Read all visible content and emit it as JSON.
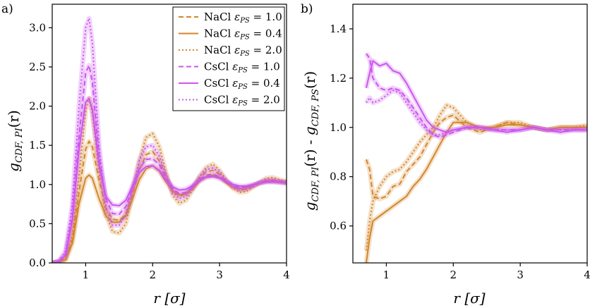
{
  "chart_data": [
    {
      "type": "line",
      "panel_label": "a)",
      "title": "",
      "xlabel": "r [σ]",
      "ylabel": "g_{CDF,PI}(r)",
      "xlim": [
        0.5,
        4.0
      ],
      "ylim": [
        0.0,
        3.3
      ],
      "xticks": [
        1,
        2,
        3,
        4
      ],
      "yticks": [
        0.0,
        0.5,
        1.0,
        1.5,
        2.0,
        2.5,
        3.0
      ],
      "legend_position": "top-right",
      "series": [
        {
          "name": "NaCl ε_PS = 1.0",
          "label_main": "NaCl ",
          "label_eps": "ε",
          "label_sub": "PS",
          "label_val": " = 1.0",
          "color": "#d4862a",
          "dash": "dashed",
          "x": [
            0.5,
            0.6,
            0.7,
            0.8,
            0.9,
            1.0,
            1.05,
            1.1,
            1.2,
            1.3,
            1.4,
            1.5,
            1.6,
            1.7,
            1.8,
            1.9,
            2.0,
            2.1,
            2.2,
            2.3,
            2.4,
            2.5,
            2.6,
            2.7,
            2.8,
            2.9,
            3.0,
            3.1,
            3.2,
            3.3,
            3.4,
            3.5,
            3.6,
            3.7,
            3.8,
            3.9,
            4.0
          ],
          "y": [
            0.0,
            0.01,
            0.05,
            0.3,
            0.9,
            1.45,
            1.55,
            1.48,
            1.05,
            0.7,
            0.56,
            0.54,
            0.62,
            0.88,
            1.18,
            1.38,
            1.42,
            1.3,
            1.1,
            0.92,
            0.85,
            0.88,
            0.97,
            1.08,
            1.16,
            1.18,
            1.13,
            1.04,
            0.97,
            0.93,
            0.94,
            0.98,
            1.02,
            1.05,
            1.06,
            1.04,
            1.03
          ]
        },
        {
          "name": "NaCl ε_PS = 0.4",
          "label_main": "NaCl ",
          "label_eps": "ε",
          "label_sub": "PS",
          "label_val": " = 0.4",
          "color": "#d4862a",
          "dash": "solid",
          "x": [
            0.5,
            0.6,
            0.7,
            0.8,
            0.9,
            1.0,
            1.05,
            1.1,
            1.2,
            1.3,
            1.4,
            1.5,
            1.6,
            1.7,
            1.8,
            1.9,
            2.0,
            2.1,
            2.2,
            2.3,
            2.4,
            2.5,
            2.6,
            2.7,
            2.8,
            2.9,
            3.0,
            3.1,
            3.2,
            3.3,
            3.4,
            3.5,
            3.6,
            3.7,
            3.8,
            3.9,
            4.0
          ],
          "y": [
            0.0,
            0.01,
            0.04,
            0.25,
            0.75,
            1.08,
            1.12,
            1.08,
            0.82,
            0.6,
            0.52,
            0.52,
            0.6,
            0.82,
            1.06,
            1.2,
            1.24,
            1.17,
            1.03,
            0.92,
            0.87,
            0.88,
            0.95,
            1.04,
            1.1,
            1.12,
            1.09,
            1.02,
            0.97,
            0.95,
            0.96,
            0.99,
            1.02,
            1.04,
            1.04,
            1.03,
            1.02
          ]
        },
        {
          "name": "NaCl ε_PS = 2.0",
          "label_main": "NaCl ",
          "label_eps": "ε",
          "label_sub": "PS",
          "label_val": " = 2.0",
          "color": "#d4862a",
          "dash": "dotted",
          "x": [
            0.5,
            0.6,
            0.7,
            0.8,
            0.9,
            1.0,
            1.05,
            1.1,
            1.2,
            1.3,
            1.4,
            1.5,
            1.6,
            1.7,
            1.8,
            1.9,
            2.0,
            2.1,
            2.2,
            2.3,
            2.4,
            2.5,
            2.6,
            2.7,
            2.8,
            2.9,
            3.0,
            3.1,
            3.2,
            3.3,
            3.4,
            3.5,
            3.6,
            3.7,
            3.8,
            3.9,
            4.0
          ],
          "y": [
            0.0,
            0.01,
            0.06,
            0.35,
            1.1,
            1.95,
            2.1,
            1.9,
            1.15,
            0.62,
            0.4,
            0.38,
            0.5,
            0.88,
            1.3,
            1.6,
            1.65,
            1.48,
            1.15,
            0.86,
            0.76,
            0.8,
            0.93,
            1.1,
            1.22,
            1.26,
            1.18,
            1.06,
            0.95,
            0.9,
            0.91,
            0.97,
            1.03,
            1.08,
            1.09,
            1.06,
            1.04
          ]
        },
        {
          "name": "CsCl ε_PS = 1.0",
          "label_main": "CsCl ",
          "label_eps": "ε",
          "label_sub": "PS",
          "label_val": " = 1.0",
          "color": "#cc55ee",
          "dash": "dashed",
          "x": [
            0.5,
            0.6,
            0.7,
            0.8,
            0.9,
            1.0,
            1.05,
            1.1,
            1.2,
            1.3,
            1.4,
            1.5,
            1.6,
            1.7,
            1.8,
            1.9,
            2.0,
            2.1,
            2.2,
            2.3,
            2.4,
            2.5,
            2.6,
            2.7,
            2.8,
            2.9,
            3.0,
            3.1,
            3.2,
            3.3,
            3.4,
            3.5,
            3.6,
            3.7,
            3.8,
            3.9,
            4.0
          ],
          "y": [
            0.0,
            0.02,
            0.12,
            0.6,
            1.6,
            2.42,
            2.52,
            2.3,
            1.35,
            0.82,
            0.63,
            0.62,
            0.72,
            0.95,
            1.2,
            1.32,
            1.33,
            1.25,
            1.08,
            0.95,
            0.88,
            0.9,
            0.97,
            1.06,
            1.12,
            1.13,
            1.1,
            1.04,
            0.99,
            0.96,
            0.97,
            0.99,
            1.02,
            1.04,
            1.04,
            1.03,
            1.02
          ]
        },
        {
          "name": "CsCl ε_PS = 0.4",
          "label_main": "CsCl ",
          "label_eps": "ε",
          "label_sub": "PS",
          "label_val": " = 0.4",
          "color": "#cc55ee",
          "dash": "solid",
          "x": [
            0.5,
            0.6,
            0.7,
            0.8,
            0.9,
            1.0,
            1.05,
            1.1,
            1.2,
            1.3,
            1.4,
            1.5,
            1.6,
            1.7,
            1.8,
            1.9,
            2.0,
            2.1,
            2.2,
            2.3,
            2.4,
            2.5,
            2.6,
            2.7,
            2.8,
            2.9,
            3.0,
            3.1,
            3.2,
            3.3,
            3.4,
            3.5,
            3.6,
            3.7,
            3.8,
            3.9,
            4.0
          ],
          "y": [
            0.0,
            0.02,
            0.1,
            0.55,
            1.45,
            2.05,
            2.1,
            1.95,
            1.25,
            0.85,
            0.74,
            0.73,
            0.8,
            0.98,
            1.15,
            1.23,
            1.24,
            1.18,
            1.06,
            0.97,
            0.93,
            0.94,
            0.99,
            1.05,
            1.09,
            1.1,
            1.08,
            1.04,
            1.0,
            0.98,
            0.98,
            1.0,
            1.02,
            1.03,
            1.03,
            1.03,
            1.02
          ]
        },
        {
          "name": "CsCl ε_PS = 2.0",
          "label_main": "CsCl ",
          "label_eps": "ε",
          "label_sub": "PS",
          "label_val": " = 2.0",
          "color": "#cc55ee",
          "dash": "dotted",
          "x": [
            0.5,
            0.6,
            0.7,
            0.8,
            0.9,
            1.0,
            1.05,
            1.1,
            1.2,
            1.3,
            1.4,
            1.5,
            1.6,
            1.7,
            1.8,
            1.9,
            2.0,
            2.1,
            2.2,
            2.3,
            2.4,
            2.5,
            2.6,
            2.7,
            2.8,
            2.9,
            3.0,
            3.1,
            3.2,
            3.3,
            3.4,
            3.5,
            3.6,
            3.7,
            3.8,
            3.9,
            4.0
          ],
          "y": [
            0.0,
            0.02,
            0.15,
            0.75,
            2.0,
            3.0,
            3.12,
            2.8,
            1.5,
            0.72,
            0.48,
            0.48,
            0.62,
            0.95,
            1.3,
            1.48,
            1.5,
            1.36,
            1.12,
            0.9,
            0.82,
            0.85,
            0.96,
            1.1,
            1.19,
            1.21,
            1.15,
            1.05,
            0.97,
            0.93,
            0.94,
            0.98,
            1.03,
            1.06,
            1.06,
            1.04,
            1.03
          ]
        }
      ]
    },
    {
      "type": "line",
      "panel_label": "b)",
      "title": "",
      "xlabel": "r [σ]",
      "ylabel": "g_{CDF,PI}(r) - g_{CDF,PS}(r)",
      "xlim": [
        0.5,
        4.0
      ],
      "ylim": [
        0.45,
        1.5
      ],
      "xticks": [
        1,
        2,
        3,
        4
      ],
      "yticks": [
        0.6,
        0.8,
        1.0,
        1.2,
        1.4
      ],
      "series": [
        {
          "name": "NaCl ε_PS = 1.0",
          "color": "#d4862a",
          "dash": "dashed",
          "x": [
            0.7,
            0.75,
            0.8,
            0.9,
            1.0,
            1.1,
            1.2,
            1.3,
            1.4,
            1.5,
            1.6,
            1.7,
            1.8,
            1.9,
            2.0,
            2.2,
            2.4,
            2.6,
            2.8,
            3.0,
            3.2,
            3.4,
            3.6,
            3.8,
            4.0
          ],
          "y": [
            0.87,
            0.83,
            0.72,
            0.71,
            0.72,
            0.76,
            0.77,
            0.82,
            0.85,
            0.88,
            0.93,
            0.98,
            1.02,
            1.04,
            1.05,
            1.0,
            0.98,
            1.0,
            1.02,
            1.01,
            1.0,
            0.99,
            1.0,
            1.0,
            1.0
          ]
        },
        {
          "name": "NaCl ε_PS = 0.4",
          "color": "#d4862a",
          "dash": "solid",
          "x": [
            0.7,
            0.75,
            0.8,
            0.9,
            1.0,
            1.1,
            1.2,
            1.3,
            1.4,
            1.5,
            1.6,
            1.7,
            1.8,
            1.9,
            2.0,
            2.2,
            2.4,
            2.6,
            2.8,
            3.0,
            3.2,
            3.4,
            3.6,
            3.8,
            4.0
          ],
          "y": [
            0.45,
            0.55,
            0.62,
            0.64,
            0.66,
            0.68,
            0.7,
            0.72,
            0.76,
            0.79,
            0.83,
            0.88,
            0.93,
            0.98,
            1.02,
            1.02,
            1.0,
            1.0,
            1.01,
            1.01,
            1.0,
            0.99,
            1.0,
            1.0,
            1.0
          ]
        },
        {
          "name": "NaCl ε_PS = 2.0",
          "color": "#d4862a",
          "dash": "dotted",
          "x": [
            0.7,
            0.75,
            0.8,
            0.9,
            1.0,
            1.1,
            1.2,
            1.3,
            1.4,
            1.5,
            1.6,
            1.7,
            1.8,
            1.9,
            2.0,
            2.2,
            2.4,
            2.6,
            2.8,
            3.0,
            3.2,
            3.4,
            3.6,
            3.8,
            4.0
          ],
          "y": [
            0.5,
            0.62,
            0.7,
            0.76,
            0.8,
            0.82,
            0.83,
            0.86,
            0.9,
            0.94,
            0.97,
            1.0,
            1.05,
            1.09,
            1.08,
            1.02,
            0.99,
            1.0,
            1.02,
            1.02,
            1.0,
            0.99,
            1.0,
            1.0,
            1.01
          ]
        },
        {
          "name": "CsCl ε_PS = 1.0",
          "color": "#cc55ee",
          "dash": "dashed",
          "x": [
            0.7,
            0.75,
            0.8,
            0.9,
            1.0,
            1.1,
            1.2,
            1.3,
            1.4,
            1.5,
            1.6,
            1.7,
            1.8,
            1.9,
            2.0,
            2.2,
            2.4,
            2.6,
            2.8,
            3.0,
            3.2,
            3.4,
            3.6,
            3.8,
            4.0
          ],
          "y": [
            1.3,
            1.28,
            1.2,
            1.16,
            1.15,
            1.16,
            1.15,
            1.12,
            1.08,
            1.04,
            1.0,
            0.97,
            0.96,
            0.97,
            0.98,
            1.0,
            1.0,
            0.99,
            0.99,
            0.99,
            1.0,
            0.99,
            0.99,
            0.99,
            0.99
          ]
        },
        {
          "name": "CsCl ε_PS = 0.4",
          "color": "#cc55ee",
          "dash": "solid",
          "x": [
            0.7,
            0.75,
            0.8,
            0.9,
            1.0,
            1.1,
            1.2,
            1.3,
            1.4,
            1.5,
            1.6,
            1.7,
            1.8,
            1.9,
            2.0,
            2.2,
            2.4,
            2.6,
            2.8,
            3.0,
            3.2,
            3.4,
            3.6,
            3.8,
            4.0
          ],
          "y": [
            1.16,
            1.22,
            1.27,
            1.25,
            1.26,
            1.23,
            1.22,
            1.18,
            1.13,
            1.08,
            1.03,
            1.0,
            0.99,
            0.98,
            0.99,
            1.0,
            1.0,
            0.99,
            0.98,
            0.99,
            1.0,
            0.99,
            0.98,
            0.99,
            0.99
          ]
        },
        {
          "name": "CsCl ε_PS = 2.0",
          "color": "#cc55ee",
          "dash": "dotted",
          "x": [
            0.7,
            0.75,
            0.8,
            0.9,
            1.0,
            1.1,
            1.2,
            1.3,
            1.4,
            1.5,
            1.6,
            1.7,
            1.8,
            1.9,
            2.0,
            2.2,
            2.4,
            2.6,
            2.8,
            3.0,
            3.2,
            3.4,
            3.6,
            3.8,
            4.0
          ],
          "y": [
            1.1,
            1.12,
            1.1,
            1.11,
            1.13,
            1.15,
            1.14,
            1.1,
            1.06,
            1.02,
            0.99,
            0.97,
            0.97,
            0.98,
            0.99,
            1.0,
            1.0,
            0.99,
            0.99,
            0.99,
            1.0,
            0.99,
            0.99,
            0.99,
            0.99
          ]
        }
      ]
    }
  ]
}
